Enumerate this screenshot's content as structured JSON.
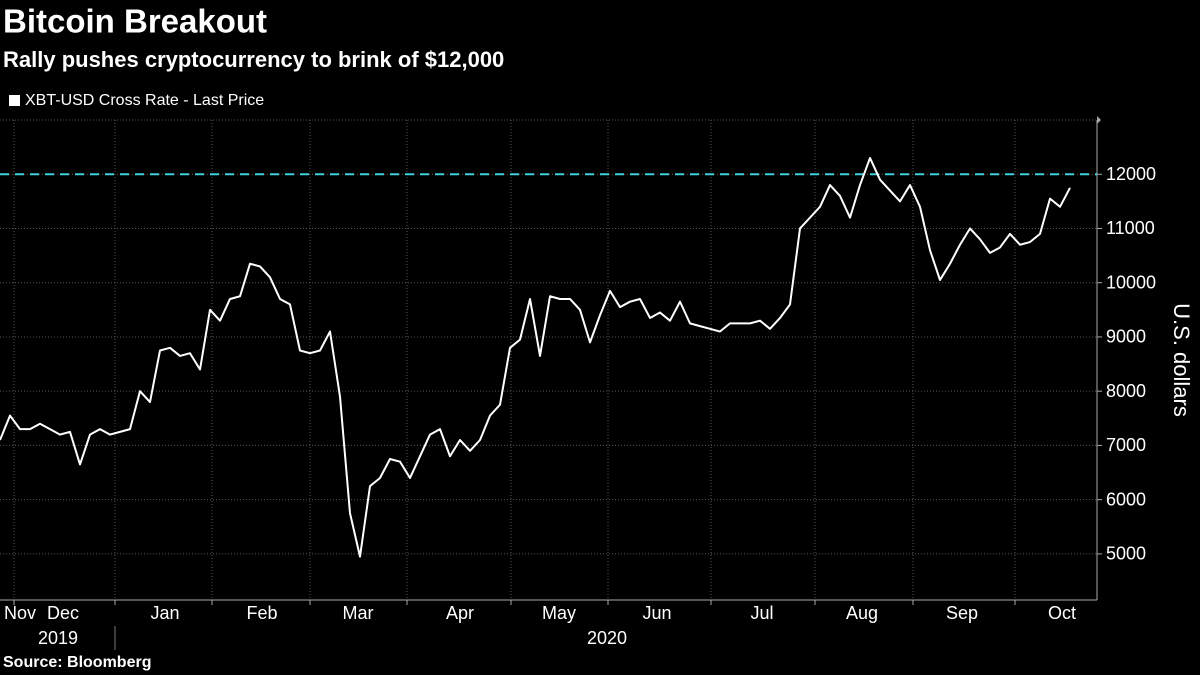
{
  "chart_data": {
    "type": "line",
    "title": "Bitcoin Breakout",
    "subtitle": "Rally pushes cryptocurrency to brink of $12,000",
    "source": "Source: Bloomberg",
    "y_axis_label": "U.S. dollars",
    "y_axis_side": "right",
    "series": [
      {
        "name": "XBT-USD Cross Rate - Last Price",
        "color": "#ffffff",
        "values": [
          7100,
          7550,
          7300,
          7300,
          7400,
          7300,
          7200,
          7250,
          6650,
          7200,
          7300,
          7200,
          7250,
          7300,
          8000,
          7800,
          8750,
          8800,
          8650,
          8700,
          8400,
          9500,
          9300,
          9700,
          9750,
          10350,
          10300,
          10100,
          9700,
          9600,
          8750,
          8700,
          8750,
          9100,
          7900,
          5750,
          4950,
          6250,
          6400,
          6750,
          6700,
          6400,
          6800,
          7200,
          7300,
          6800,
          7100,
          6900,
          7100,
          7550,
          7750,
          8800,
          8950,
          9700,
          8650,
          9750,
          9700,
          9700,
          9500,
          8900,
          9400,
          9850,
          9550,
          9650,
          9700,
          9350,
          9450,
          9300,
          9650,
          9250,
          9200,
          9150,
          9100,
          9250,
          9250,
          9250,
          9300,
          9150,
          9350,
          9600,
          11000,
          11200,
          11400,
          11800,
          11600,
          11200,
          11800,
          12300,
          11900,
          11700,
          11500,
          11800,
          11400,
          10600,
          10050,
          10350,
          10700,
          11000,
          10800,
          10550,
          10650,
          10900,
          10700,
          10750,
          10900,
          11550,
          11400,
          11750
        ]
      }
    ],
    "xlim": [
      0,
      109.7
    ],
    "xgrid": [
      1.4,
      11.5,
      21.2,
      31.0,
      40.7,
      51.1,
      60.8,
      71.1,
      81.5,
      91.3,
      101.5
    ],
    "xticks": [
      {
        "value": 2.0,
        "label": "Nov"
      },
      {
        "value": 6.3,
        "label": "Dec"
      },
      {
        "value": 16.5,
        "label": "Jan"
      },
      {
        "value": 26.2,
        "label": "Feb"
      },
      {
        "value": 35.8,
        "label": "Mar"
      },
      {
        "value": 46.0,
        "label": "Apr"
      },
      {
        "value": 55.9,
        "label": "May"
      },
      {
        "value": 65.7,
        "label": "Jun"
      },
      {
        "value": 76.2,
        "label": "Jul"
      },
      {
        "value": 86.2,
        "label": "Aug"
      },
      {
        "value": 96.2,
        "label": "Sep"
      },
      {
        "value": 106.2,
        "label": "Oct"
      }
    ],
    "year_labels": [
      {
        "value": 5.8,
        "label": "2019"
      },
      {
        "value": 60.7,
        "label": "2020"
      }
    ],
    "ylim": [
      4150,
      13000
    ],
    "yticks": [
      5000,
      6000,
      7000,
      8000,
      9000,
      10000,
      11000,
      12000
    ],
    "grid": true,
    "reference_line": {
      "value": 12000,
      "color": "#3fd0dc"
    }
  }
}
